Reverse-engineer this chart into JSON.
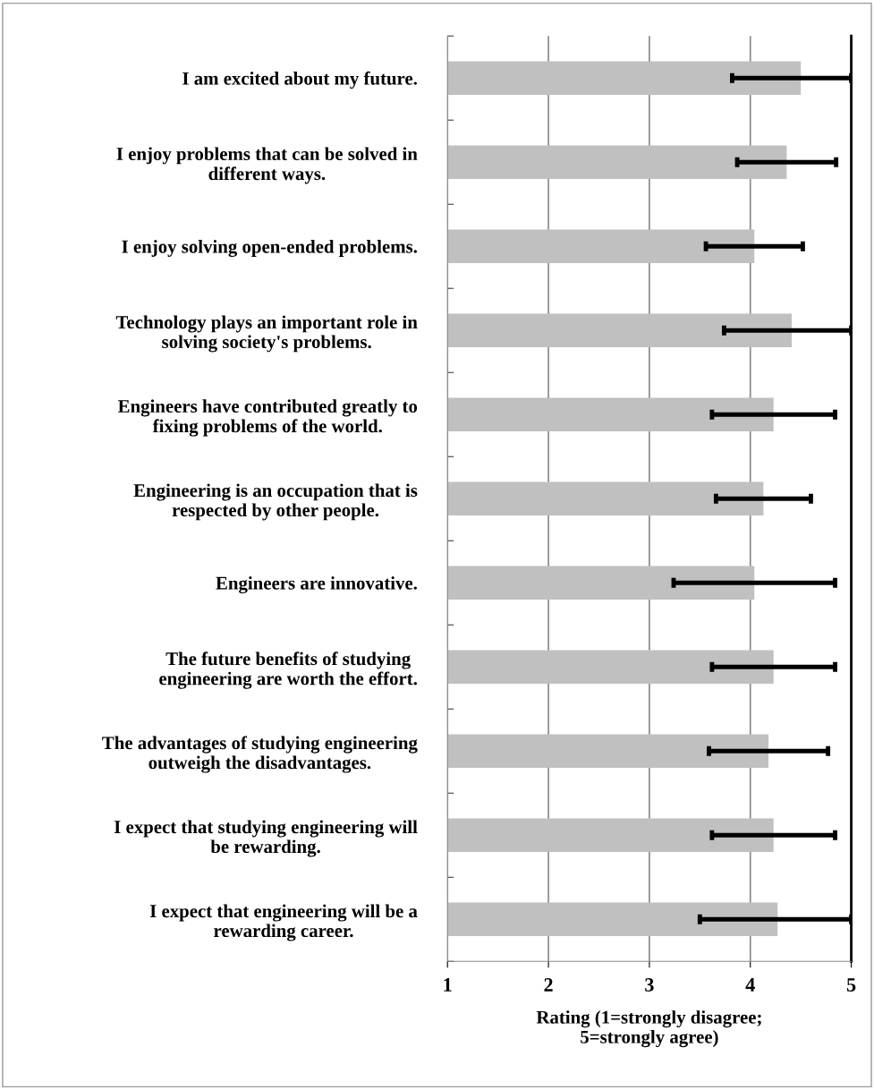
{
  "chart_data": {
    "type": "bar",
    "orientation": "horizontal",
    "xlabel": "Rating (1=strongly disagree;\n5=strongly agree)",
    "categories": [
      "I am excited about my future.",
      "I enjoy problems that can be solved in\ndifferent ways.",
      "I enjoy solving open-ended problems.",
      "Technology plays an important role in\nsolving society's problems.",
      "Engineers have contributed greatly to\nfixing problems of the world.",
      "Engineering is an occupation that is\nrespected by other people.",
      "Engineers are innovative.",
      "The future benefits of studying\nengineering are worth the effort.",
      "The advantages of studying engineering\noutweigh the disadvantages.",
      "I expect that studying engineering will\nbe rewarding.",
      "I expect that engineering will be a\nrewarding career."
    ],
    "values": [
      4.5,
      4.36,
      4.04,
      4.41,
      4.23,
      4.13,
      4.04,
      4.23,
      4.18,
      4.23,
      4.27
    ],
    "errors": [
      [
        3.82,
        5
      ],
      0.49,
      0.48,
      [
        3.74,
        5
      ],
      0.61,
      0.47,
      0.8,
      0.61,
      0.59,
      0.61,
      [
        3.5,
        5
      ]
    ],
    "color": "#c0c0c0",
    "xlim": [
      1,
      5
    ],
    "xticks": [
      1,
      2,
      3,
      4,
      5
    ],
    "grid": "x"
  }
}
